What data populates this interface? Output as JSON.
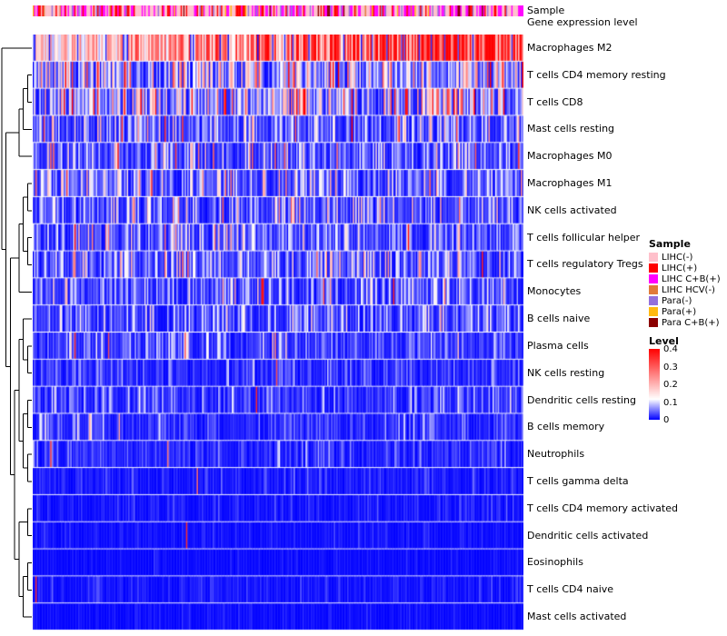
{
  "annotations": {
    "sample_label": "Sample",
    "expression_label": "Gene expression level",
    "expression_color": "#7dce8"
  },
  "chart_data": {
    "type": "heatmap",
    "n_cols": 365,
    "colormap": {
      "low": "#0000ff",
      "mid": "#ffffff",
      "high": "#ff0000",
      "min": 0,
      "midpoint": 0.115,
      "max": 0.4
    },
    "rows": [
      {
        "label": "Macrophages M2",
        "mean": 0.27,
        "spike": 0.0,
        "trend": 0.9
      },
      {
        "label": "T cells CD4 memory resting",
        "mean": 0.1,
        "spike": 0.03,
        "trend": 0
      },
      {
        "label": "T cells CD8",
        "mean": 0.1,
        "spike": 0.02,
        "trend": 0
      },
      {
        "label": "Mast cells resting",
        "mean": 0.055,
        "spike": 0.02,
        "trend": 0
      },
      {
        "label": "Macrophages M0",
        "mean": 0.05,
        "spike": 0.03,
        "trend": 0
      },
      {
        "label": "Macrophages M1",
        "mean": 0.06,
        "spike": 0.01,
        "trend": 0
      },
      {
        "label": "NK cells activated",
        "mean": 0.055,
        "spike": 0.01,
        "trend": 0
      },
      {
        "label": "T cells follicular helper",
        "mean": 0.05,
        "spike": 0.008,
        "trend": 0
      },
      {
        "label": "T cells regulatory Tregs",
        "mean": 0.05,
        "spike": 0.008,
        "trend": 0
      },
      {
        "label": "Monocytes",
        "mean": 0.042,
        "spike": 0.01,
        "trend": 0
      },
      {
        "label": "B cells naive",
        "mean": 0.04,
        "spike": 0.006,
        "trend": 0
      },
      {
        "label": "Plasma cells",
        "mean": 0.035,
        "spike": 0.01,
        "trend": 0
      },
      {
        "label": "NK cells resting",
        "mean": 0.022,
        "spike": 0.004,
        "trend": 0
      },
      {
        "label": "Dendritic cells resting",
        "mean": 0.03,
        "spike": 0.004,
        "trend": 0
      },
      {
        "label": "B cells memory",
        "mean": 0.022,
        "spike": 0.004,
        "trend": 0
      },
      {
        "label": "Neutrophils",
        "mean": 0.02,
        "spike": 0.004,
        "trend": 0
      },
      {
        "label": "T cells gamma delta",
        "mean": 0.012,
        "spike": 0.002,
        "trend": 0
      },
      {
        "label": "T cells CD4 memory activated",
        "mean": 0.009,
        "spike": 0.002,
        "trend": 0
      },
      {
        "label": "Dendritic cells activated",
        "mean": 0.007,
        "spike": 0.001,
        "trend": 0
      },
      {
        "label": "Eosinophils",
        "mean": 0.005,
        "spike": 0.001,
        "trend": 0
      },
      {
        "label": "T cells CD4 naive",
        "mean": 0.009,
        "spike": 0.002,
        "trend": 0
      },
      {
        "label": "Mast cells activated",
        "mean": 0.005,
        "spike": 0.001,
        "trend": 0
      }
    ],
    "dendrogram": [
      0,
      [
        [
          [
            [
              1,
              2
            ],
            3
          ],
          4
        ],
        [
          [
            [
              [
                5,
                6
              ],
              [
                7,
                8
              ]
            ],
            9
          ],
          [
            [
              [
                10,
                [
                  11,
                  12
                ]
              ],
              [
                [
                  13,
                  14
                ],
                [
                  15,
                  16
                ]
              ]
            ],
            [
              [
                17,
                18
              ],
              [
                [
                  19,
                  20
                ],
                21
              ]
            ]
          ]
        ]
      ]
    ],
    "legend_sample": {
      "title": "Sample",
      "entries": [
        {
          "label": "LIHC(-)",
          "color": "#ffc0cb",
          "weight": 0.4
        },
        {
          "label": "LIHC(+)",
          "color": "#ff0000",
          "weight": 0.18
        },
        {
          "label": "LIHC C+B(+)",
          "color": "#ff00ff",
          "weight": 0.25
        },
        {
          "label": "LIHC HCV(-)",
          "color": "#e07b39",
          "weight": 0.02
        },
        {
          "label": "Para(-)",
          "color": "#9370db",
          "weight": 0.1
        },
        {
          "label": "Para(+)",
          "color": "#ffb90f",
          "weight": 0.03
        },
        {
          "label": "Para C+B(+)",
          "color": "#8b0000",
          "weight": 0.02
        }
      ]
    },
    "legend_level": {
      "title": "Level",
      "ticks": [
        "0.4",
        "0.3",
        "0.2",
        "0.1",
        "0"
      ],
      "max": 0.4,
      "min": 0
    }
  }
}
